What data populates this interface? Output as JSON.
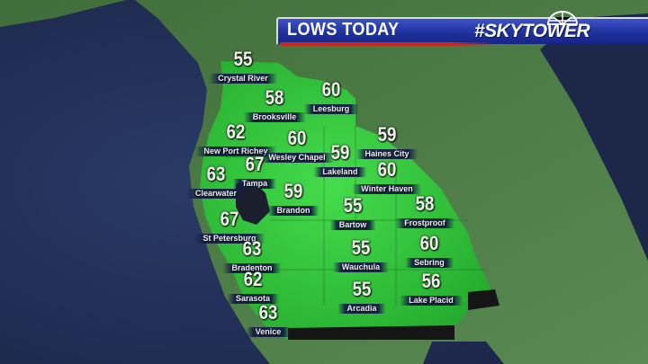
{
  "banner": {
    "title": "LOWS TODAY",
    "brand": "#SKYTOWER",
    "brand_icon": "radar-dome-icon"
  },
  "colors": {
    "gulf": "#1f2a4e",
    "land": "#4d7a45",
    "forecast_area": "#2fc23a",
    "banner_blue": "#1e2f9a",
    "banner_red": "#c8261e"
  },
  "units": "°F",
  "cities": [
    {
      "name": "Crystal River",
      "low": 55
    },
    {
      "name": "Brooksville",
      "low": 58
    },
    {
      "name": "Leesburg",
      "low": 60
    },
    {
      "name": "New Port Richey",
      "low": 62
    },
    {
      "name": "Wesley Chapel",
      "low": 60
    },
    {
      "name": "Lakeland",
      "low": 59
    },
    {
      "name": "Haines City",
      "low": 59
    },
    {
      "name": "Winter Haven",
      "low": 60
    },
    {
      "name": "Tampa",
      "low": 67
    },
    {
      "name": "Clearwater",
      "low": 63
    },
    {
      "name": "Brandon",
      "low": 59
    },
    {
      "name": "Bartow",
      "low": 55
    },
    {
      "name": "Frostproof",
      "low": 58
    },
    {
      "name": "St Petersburg",
      "low": 67
    },
    {
      "name": "Bradenton",
      "low": 63
    },
    {
      "name": "Wauchula",
      "low": 55
    },
    {
      "name": "Sebring",
      "low": 60
    },
    {
      "name": "Sarasota",
      "low": 62
    },
    {
      "name": "Lake Placid",
      "low": 56
    },
    {
      "name": "Arcadia",
      "low": 55
    },
    {
      "name": "Venice",
      "low": 63
    }
  ]
}
